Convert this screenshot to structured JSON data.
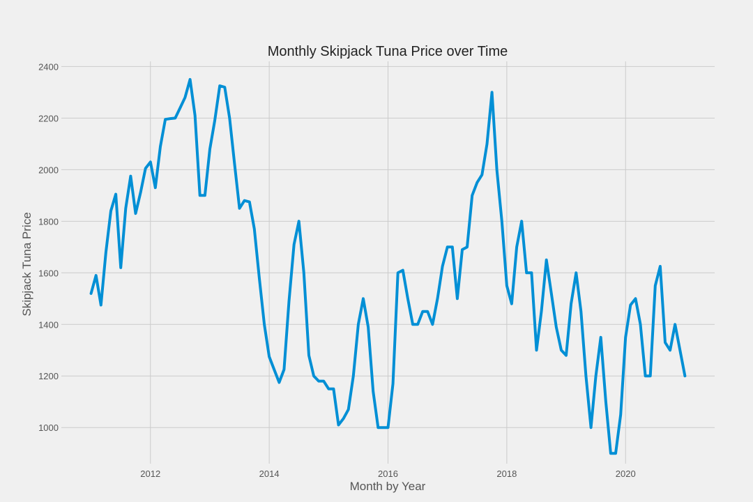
{
  "chart_data": {
    "type": "line",
    "title": "Monthly Skipjack Tuna Price over Time",
    "xlabel": "Month by Year",
    "ylabel": "Skipjack Tuna Price",
    "xlim": [
      2010.5,
      2021.5
    ],
    "ylim": [
      860,
      2420
    ],
    "x_ticks": [
      2012,
      2014,
      2016,
      2018,
      2020
    ],
    "y_ticks": [
      1000,
      1200,
      1400,
      1600,
      1800,
      2000,
      2200,
      2400
    ],
    "grid": true,
    "line_color": "#008fd5",
    "background": "#f0f0f0",
    "series": [
      {
        "x": [
          2011.0,
          2011.083,
          2011.167,
          2011.25,
          2011.333,
          2011.417,
          2011.5,
          2011.583,
          2011.667,
          2011.75,
          2011.833,
          2011.917,
          2012.0,
          2012.083,
          2012.167,
          2012.25,
          2012.333,
          2012.417,
          2012.5,
          2012.583,
          2012.667,
          2012.75,
          2012.833,
          2012.917,
          2013.0,
          2013.083,
          2013.167,
          2013.25,
          2013.333,
          2013.417,
          2013.5,
          2013.583,
          2013.667,
          2013.75,
          2013.833,
          2013.917,
          2014.0,
          2014.083,
          2014.167,
          2014.25,
          2014.333,
          2014.417,
          2014.5,
          2014.583,
          2014.667,
          2014.75,
          2014.833,
          2014.917,
          2015.0,
          2015.083,
          2015.167,
          2015.25,
          2015.333,
          2015.417,
          2015.5,
          2015.583,
          2015.667,
          2015.75,
          2015.833,
          2015.917,
          2016.0,
          2016.083,
          2016.167,
          2016.25,
          2016.333,
          2016.417,
          2016.5,
          2016.583,
          2016.667,
          2016.75,
          2016.833,
          2016.917,
          2017.0,
          2017.083,
          2017.167,
          2017.25,
          2017.333,
          2017.417,
          2017.5,
          2017.583,
          2017.667,
          2017.75,
          2017.833,
          2017.917,
          2018.0,
          2018.083,
          2018.167,
          2018.25,
          2018.333,
          2018.417,
          2018.5,
          2018.583,
          2018.667,
          2018.75,
          2018.833,
          2018.917,
          2019.0,
          2019.083,
          2019.167,
          2019.25,
          2019.333,
          2019.417,
          2019.5,
          2019.583,
          2019.667,
          2019.75,
          2019.833,
          2019.917,
          2020.0,
          2020.083,
          2020.167,
          2020.25,
          2020.333,
          2020.417,
          2020.5,
          2020.583,
          2020.667,
          2020.75,
          2020.833,
          2020.917,
          2021.0
        ],
        "y": [
          1520,
          1590,
          1475,
          1680,
          1840,
          1905,
          1620,
          1850,
          1975,
          1830,
          1910,
          2005,
          2030,
          1930,
          2090,
          2195,
          2198,
          2200,
          2240,
          2280,
          2350,
          2210,
          1900,
          1900,
          2080,
          2190,
          2325,
          2320,
          2200,
          2020,
          1850,
          1880,
          1875,
          1770,
          1580,
          1400,
          1275,
          1225,
          1175,
          1225,
          1490,
          1710,
          1800,
          1600,
          1280,
          1200,
          1180,
          1180,
          1150,
          1150,
          1010,
          1035,
          1070,
          1200,
          1400,
          1500,
          1390,
          1140,
          1000,
          1000,
          1000,
          1170,
          1600,
          1610,
          1500,
          1400,
          1400,
          1450,
          1450,
          1400,
          1500,
          1625,
          1700,
          1700,
          1500,
          1690,
          1700,
          1900,
          1950,
          1980,
          2100,
          2300,
          2000,
          1800,
          1550,
          1480,
          1700,
          1800,
          1600,
          1600,
          1300,
          1450,
          1650,
          1520,
          1390,
          1300,
          1280,
          1480,
          1600,
          1450,
          1200,
          1000,
          1200,
          1350,
          1100,
          900,
          900,
          1050,
          1350,
          1475,
          1500,
          1400,
          1200,
          1200,
          1550,
          1625,
          1330,
          1300,
          1400,
          1300,
          1200
        ]
      }
    ]
  }
}
